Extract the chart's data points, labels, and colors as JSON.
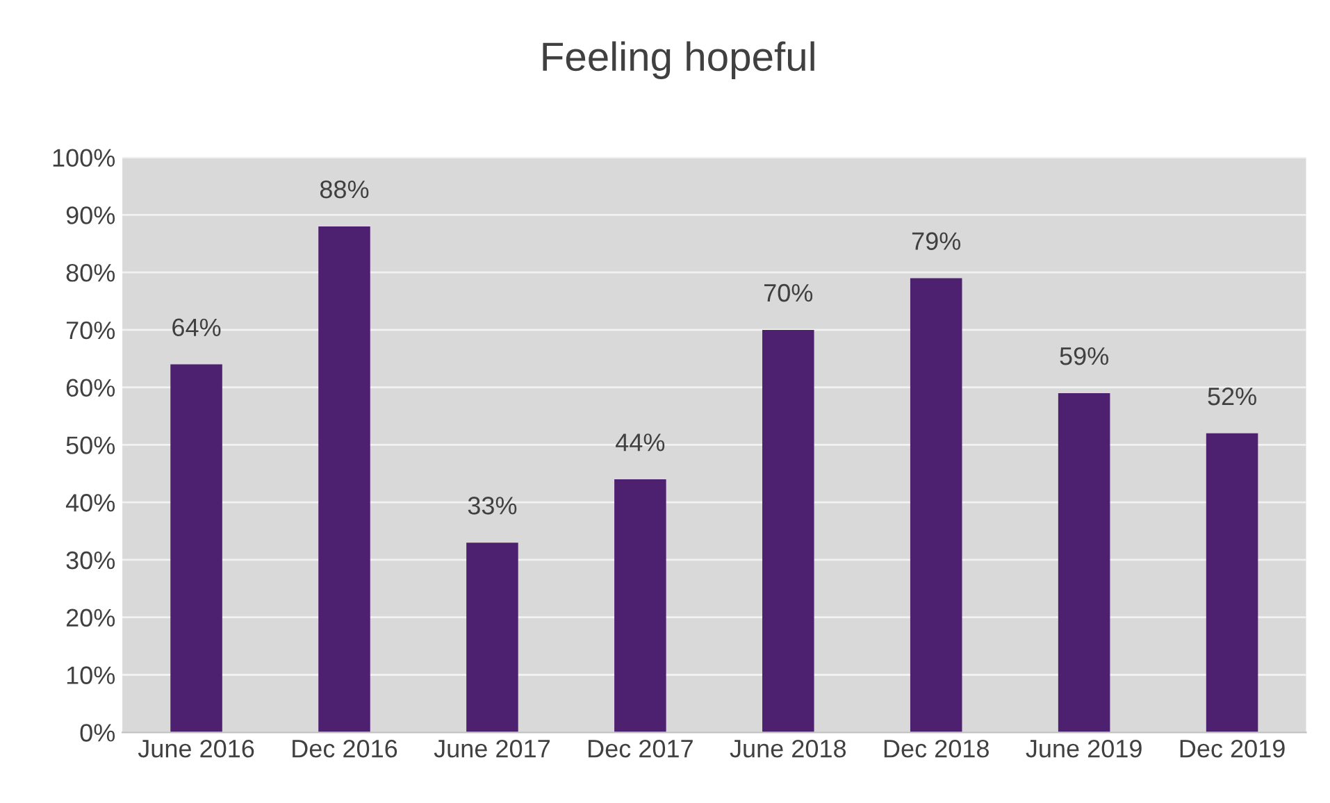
{
  "chart_data": {
    "type": "bar",
    "title": "Feeling hopeful",
    "categories": [
      "June 2016",
      "Dec 2016",
      "June 2017",
      "Dec 2017",
      "June 2018",
      "Dec 2018",
      "June 2019",
      "Dec 2019"
    ],
    "values": [
      64,
      88,
      33,
      44,
      70,
      79,
      59,
      52
    ],
    "value_labels": [
      "64%",
      "88%",
      "33%",
      "44%",
      "70%",
      "79%",
      "59%",
      "52%"
    ],
    "color": "#4e2070",
    "ylim": [
      0,
      100
    ],
    "yticks": [
      {
        "value": 0,
        "label": "0%"
      },
      {
        "value": 10,
        "label": "10%"
      },
      {
        "value": 20,
        "label": "20%"
      },
      {
        "value": 30,
        "label": "30%"
      },
      {
        "value": 40,
        "label": "40%"
      },
      {
        "value": 50,
        "label": "50%"
      },
      {
        "value": 60,
        "label": "60%"
      },
      {
        "value": 70,
        "label": "70%"
      },
      {
        "value": 80,
        "label": "80%"
      },
      {
        "value": 90,
        "label": "90%"
      },
      {
        "value": 100,
        "label": "100%"
      }
    ],
    "grid": "y"
  }
}
